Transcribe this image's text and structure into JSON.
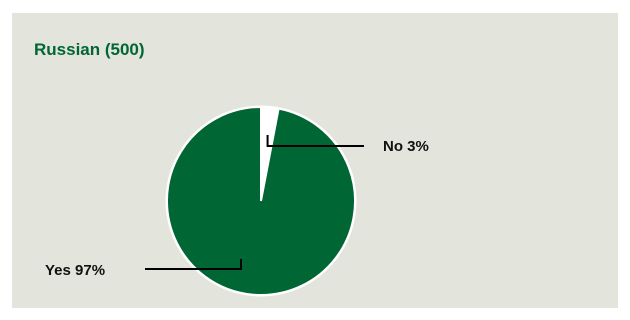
{
  "chart_data": {
    "type": "pie",
    "title": "Russian (500)",
    "slices": [
      {
        "label": "No",
        "value": 3,
        "display": "No 3%"
      },
      {
        "label": "Yes",
        "value": 97,
        "display": "Yes 97%"
      }
    ],
    "colors": {
      "yes": "#006633",
      "no": "#ffffff",
      "background": "#e3e4dc",
      "title": "#006633"
    },
    "legend": "none"
  }
}
